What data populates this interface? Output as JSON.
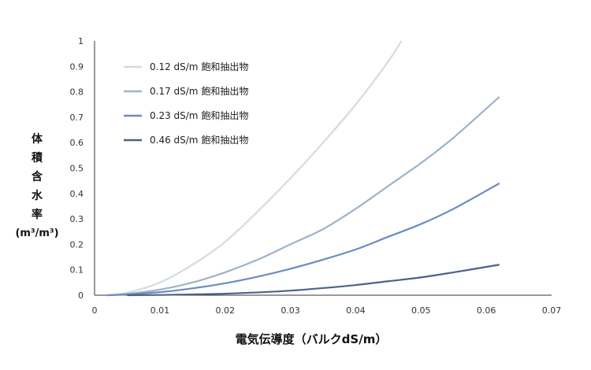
{
  "chart_data": {
    "type": "line",
    "xlabel": "電気伝導度（バルクdS/m）",
    "ylabel_lines": [
      "体",
      "積",
      "含",
      "水",
      "率"
    ],
    "ylabel_unit": "(m³/m³)",
    "xlim": [
      0,
      0.07
    ],
    "ylim": [
      0,
      1
    ],
    "x_ticks": [
      "0",
      "0.01",
      "0.02",
      "0.03",
      "0.04",
      "0.05",
      "0.06",
      "0.07"
    ],
    "y_ticks": [
      "0",
      "0.1",
      "0.2",
      "0.3",
      "0.4",
      "0.5",
      "0.6",
      "0.7",
      "0.8",
      "0.9",
      "1"
    ],
    "grid": false,
    "legend_position": "top-left",
    "series": [
      {
        "name": "0.12 dS/m 飽和抽出物",
        "color": "#d3dbe3",
        "x": [
          0.002,
          0.005,
          0.01,
          0.015,
          0.02,
          0.025,
          0.03,
          0.035,
          0.04,
          0.045,
          0.047
        ],
        "y": [
          0.0,
          0.01,
          0.05,
          0.12,
          0.21,
          0.33,
          0.46,
          0.6,
          0.75,
          0.92,
          1.0
        ]
      },
      {
        "name": "0.17 dS/m 飽和抽出物",
        "color": "#9db3cc",
        "x": [
          0.002,
          0.005,
          0.01,
          0.015,
          0.02,
          0.025,
          0.03,
          0.035,
          0.04,
          0.045,
          0.05,
          0.055,
          0.062
        ],
        "y": [
          0.0,
          0.005,
          0.022,
          0.05,
          0.09,
          0.14,
          0.2,
          0.26,
          0.34,
          0.43,
          0.52,
          0.62,
          0.78
        ]
      },
      {
        "name": "0.23 dS/m 飽和抽出物",
        "color": "#6a8cc0",
        "x": [
          0.002,
          0.005,
          0.01,
          0.015,
          0.02,
          0.025,
          0.03,
          0.035,
          0.04,
          0.045,
          0.05,
          0.055,
          0.062
        ],
        "y": [
          0.0,
          0.003,
          0.012,
          0.027,
          0.047,
          0.073,
          0.104,
          0.14,
          0.18,
          0.23,
          0.28,
          0.34,
          0.44
        ]
      },
      {
        "name": "0.46 dS/m 飽和抽出物",
        "color": "#4b6488",
        "x": [
          0.005,
          0.01,
          0.015,
          0.02,
          0.025,
          0.03,
          0.035,
          0.04,
          0.045,
          0.05,
          0.055,
          0.062
        ],
        "y": [
          0.0,
          0.001,
          0.003,
          0.006,
          0.011,
          0.018,
          0.028,
          0.04,
          0.055,
          0.07,
          0.09,
          0.12
        ]
      }
    ]
  }
}
